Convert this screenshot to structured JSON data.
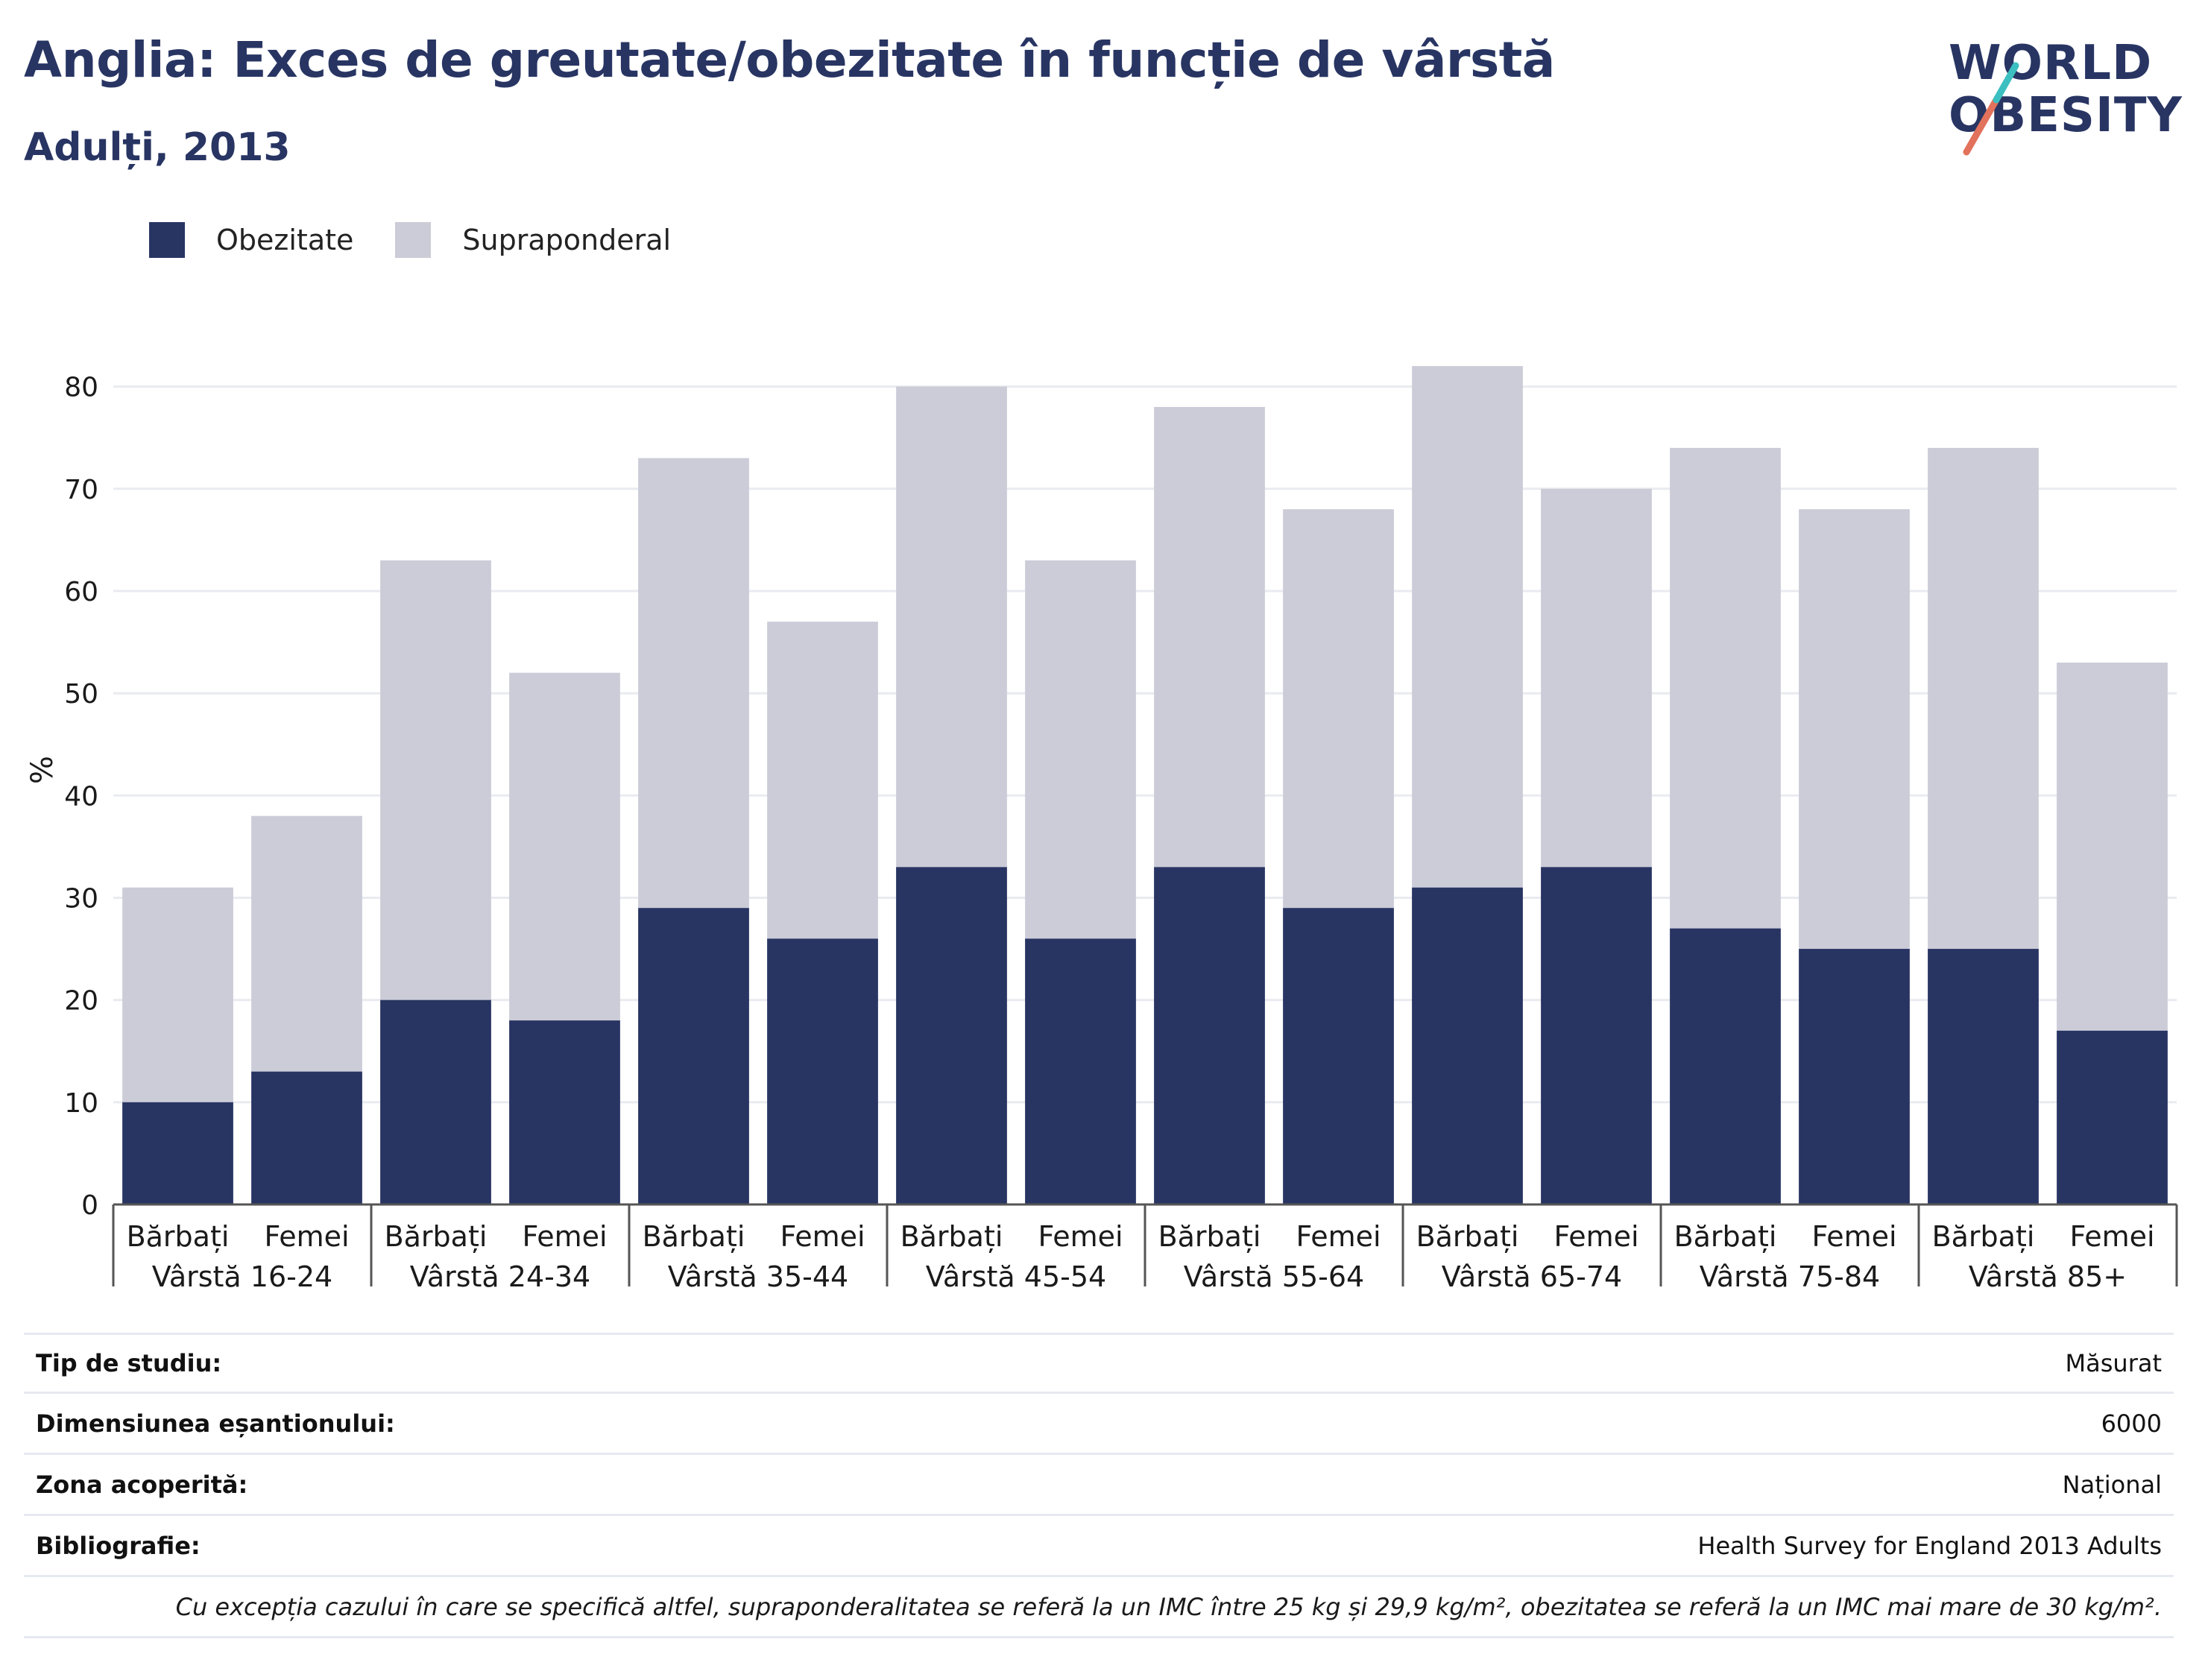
{
  "header": {
    "title": "Anglia: Exces de greutate/obezitate în funcție de vârstă",
    "subtitle": "Adulți, 2013"
  },
  "logo": {
    "line1": "WORLD",
    "line2": "OBESITY",
    "slash_colors": [
      "#e2725b",
      "#3cbfc0"
    ]
  },
  "colors": {
    "obesity": "#283563",
    "overweight": "#cbccd8",
    "gridline": "#e9ebf0",
    "axis": "#555555"
  },
  "legend": [
    {
      "label": "Obezitate",
      "color": "#283563"
    },
    {
      "label": "Supraponderal",
      "color": "#cbccd8"
    }
  ],
  "chart_data": {
    "type": "bar",
    "stacked": true,
    "ylabel": "%",
    "ylim": [
      0,
      85
    ],
    "yticks": [
      0,
      10,
      20,
      30,
      40,
      50,
      60,
      70,
      80
    ],
    "grid": true,
    "legend_position": "top-left",
    "groups": [
      "Vârstă 16-24",
      "Vârstă 24-34",
      "Vârstă 35-44",
      "Vârstă 45-54",
      "Vârstă 55-64",
      "Vârstă 65-74",
      "Vârstă 75-84",
      "Vârstă 85+"
    ],
    "sexes": [
      "Bărbați",
      "Femei"
    ],
    "categories": [
      "Bărbați",
      "Femei",
      "Bărbați",
      "Femei",
      "Bărbați",
      "Femei",
      "Bărbați",
      "Femei",
      "Bărbați",
      "Femei",
      "Bărbați",
      "Femei",
      "Bărbați",
      "Femei",
      "Bărbați",
      "Femei"
    ],
    "series": [
      {
        "name": "Obezitate",
        "values": [
          10,
          13,
          20,
          18,
          29,
          26,
          33,
          26,
          33,
          29,
          31,
          33,
          27,
          25,
          25,
          17
        ]
      },
      {
        "name": "Supraponderal",
        "values": [
          21,
          25,
          43,
          34,
          44,
          31,
          47,
          37,
          45,
          39,
          51,
          37,
          47,
          43,
          49,
          36
        ]
      }
    ]
  },
  "info": {
    "rows": [
      {
        "label": "Tip de studiu:",
        "value": "Măsurat"
      },
      {
        "label": "Dimensiunea eșantionului:",
        "value": "6000"
      },
      {
        "label": "Zona acoperită:",
        "value": "Național"
      },
      {
        "label": "Bibliografie:",
        "value": "Health Survey for England 2013 Adults"
      }
    ],
    "footnote": "Cu excepția cazului în care se specifică altfel, supraponderalitatea se referă la un IMC între 25 kg și 29,9 kg/m², obezitatea se referă la un IMC mai mare de 30 kg/m²."
  }
}
